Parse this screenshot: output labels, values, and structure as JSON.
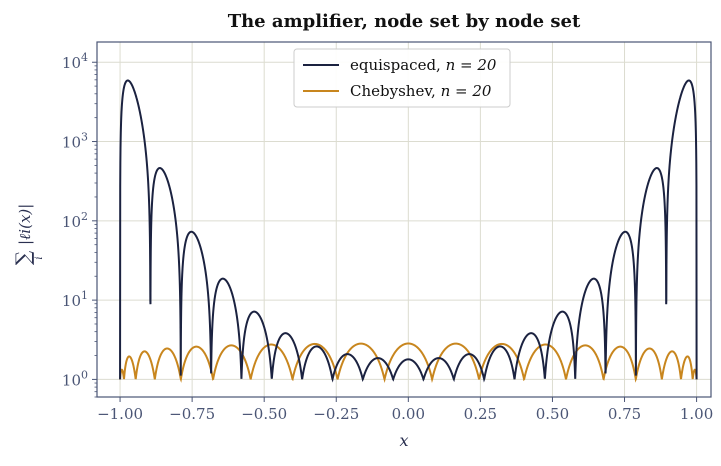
{
  "chart_data": {
    "type": "line",
    "title": "The amplifier, node set by node set",
    "xlabel": "x",
    "ylabel": "∑ |ℓi(x)|",
    "ylabel_sum": "∑",
    "ylabel_sub": "i",
    "ylabel_body": "|ℓi(x)|",
    "yscale": "log",
    "xlim": [
      -1.08,
      1.05
    ],
    "ylim": [
      0.6,
      18000
    ],
    "grid": true,
    "legend_position": "top-center",
    "x_ticks": [
      {
        "value": -1.0,
        "label": "−1.00"
      },
      {
        "value": -0.75,
        "label": "−0.75"
      },
      {
        "value": -0.5,
        "label": "−0.50"
      },
      {
        "value": -0.25,
        "label": "−0.25"
      },
      {
        "value": 0.0,
        "label": "0.00"
      },
      {
        "value": 0.25,
        "label": "0.25"
      },
      {
        "value": 0.5,
        "label": "0.50"
      },
      {
        "value": 0.75,
        "label": "0.75"
      },
      {
        "value": 1.0,
        "label": "1.00"
      }
    ],
    "y_ticks": [
      {
        "value": 1,
        "base": "10",
        "exp": "0"
      },
      {
        "value": 10,
        "base": "10",
        "exp": "1"
      },
      {
        "value": 100,
        "base": "10",
        "exp": "2"
      },
      {
        "value": 1000,
        "base": "10",
        "exp": "3"
      },
      {
        "value": 10000,
        "base": "10",
        "exp": "4"
      }
    ],
    "series": [
      {
        "name": "equispaced, n = 20",
        "legend_text": "equispaced,",
        "legend_math": "n = 20",
        "color": "#1b2240",
        "nodes": "equispaced",
        "n": 20,
        "peaks": [
          {
            "x": -0.975,
            "y": 11000
          },
          {
            "x": -0.875,
            "y": 800
          },
          {
            "x": -0.775,
            "y": 118
          },
          {
            "x": -0.675,
            "y": 28
          },
          {
            "x": -0.575,
            "y": 10
          },
          {
            "x": -0.475,
            "y": 4.8
          },
          {
            "x": -0.375,
            "y": 3.0
          },
          {
            "x": -0.275,
            "y": 2.3
          },
          {
            "x": -0.175,
            "y": 2.0
          },
          {
            "x": -0.075,
            "y": 1.8
          },
          {
            "x": 0.075,
            "y": 1.8
          },
          {
            "x": 0.175,
            "y": 2.0
          },
          {
            "x": 0.275,
            "y": 2.3
          },
          {
            "x": 0.375,
            "y": 3.0
          },
          {
            "x": 0.475,
            "y": 4.8
          },
          {
            "x": 0.575,
            "y": 10
          },
          {
            "x": 0.675,
            "y": 28
          },
          {
            "x": 0.775,
            "y": 118
          },
          {
            "x": 0.875,
            "y": 800
          },
          {
            "x": 0.975,
            "y": 11000
          }
        ]
      },
      {
        "name": "Chebyshev, n = 20",
        "legend_text": "Chebyshev,",
        "legend_math": "n = 20",
        "color": "#c8861e",
        "nodes": "chebyshev",
        "n": 20,
        "endpoint_max": 2.9,
        "interior_max": 2.45
      }
    ]
  }
}
